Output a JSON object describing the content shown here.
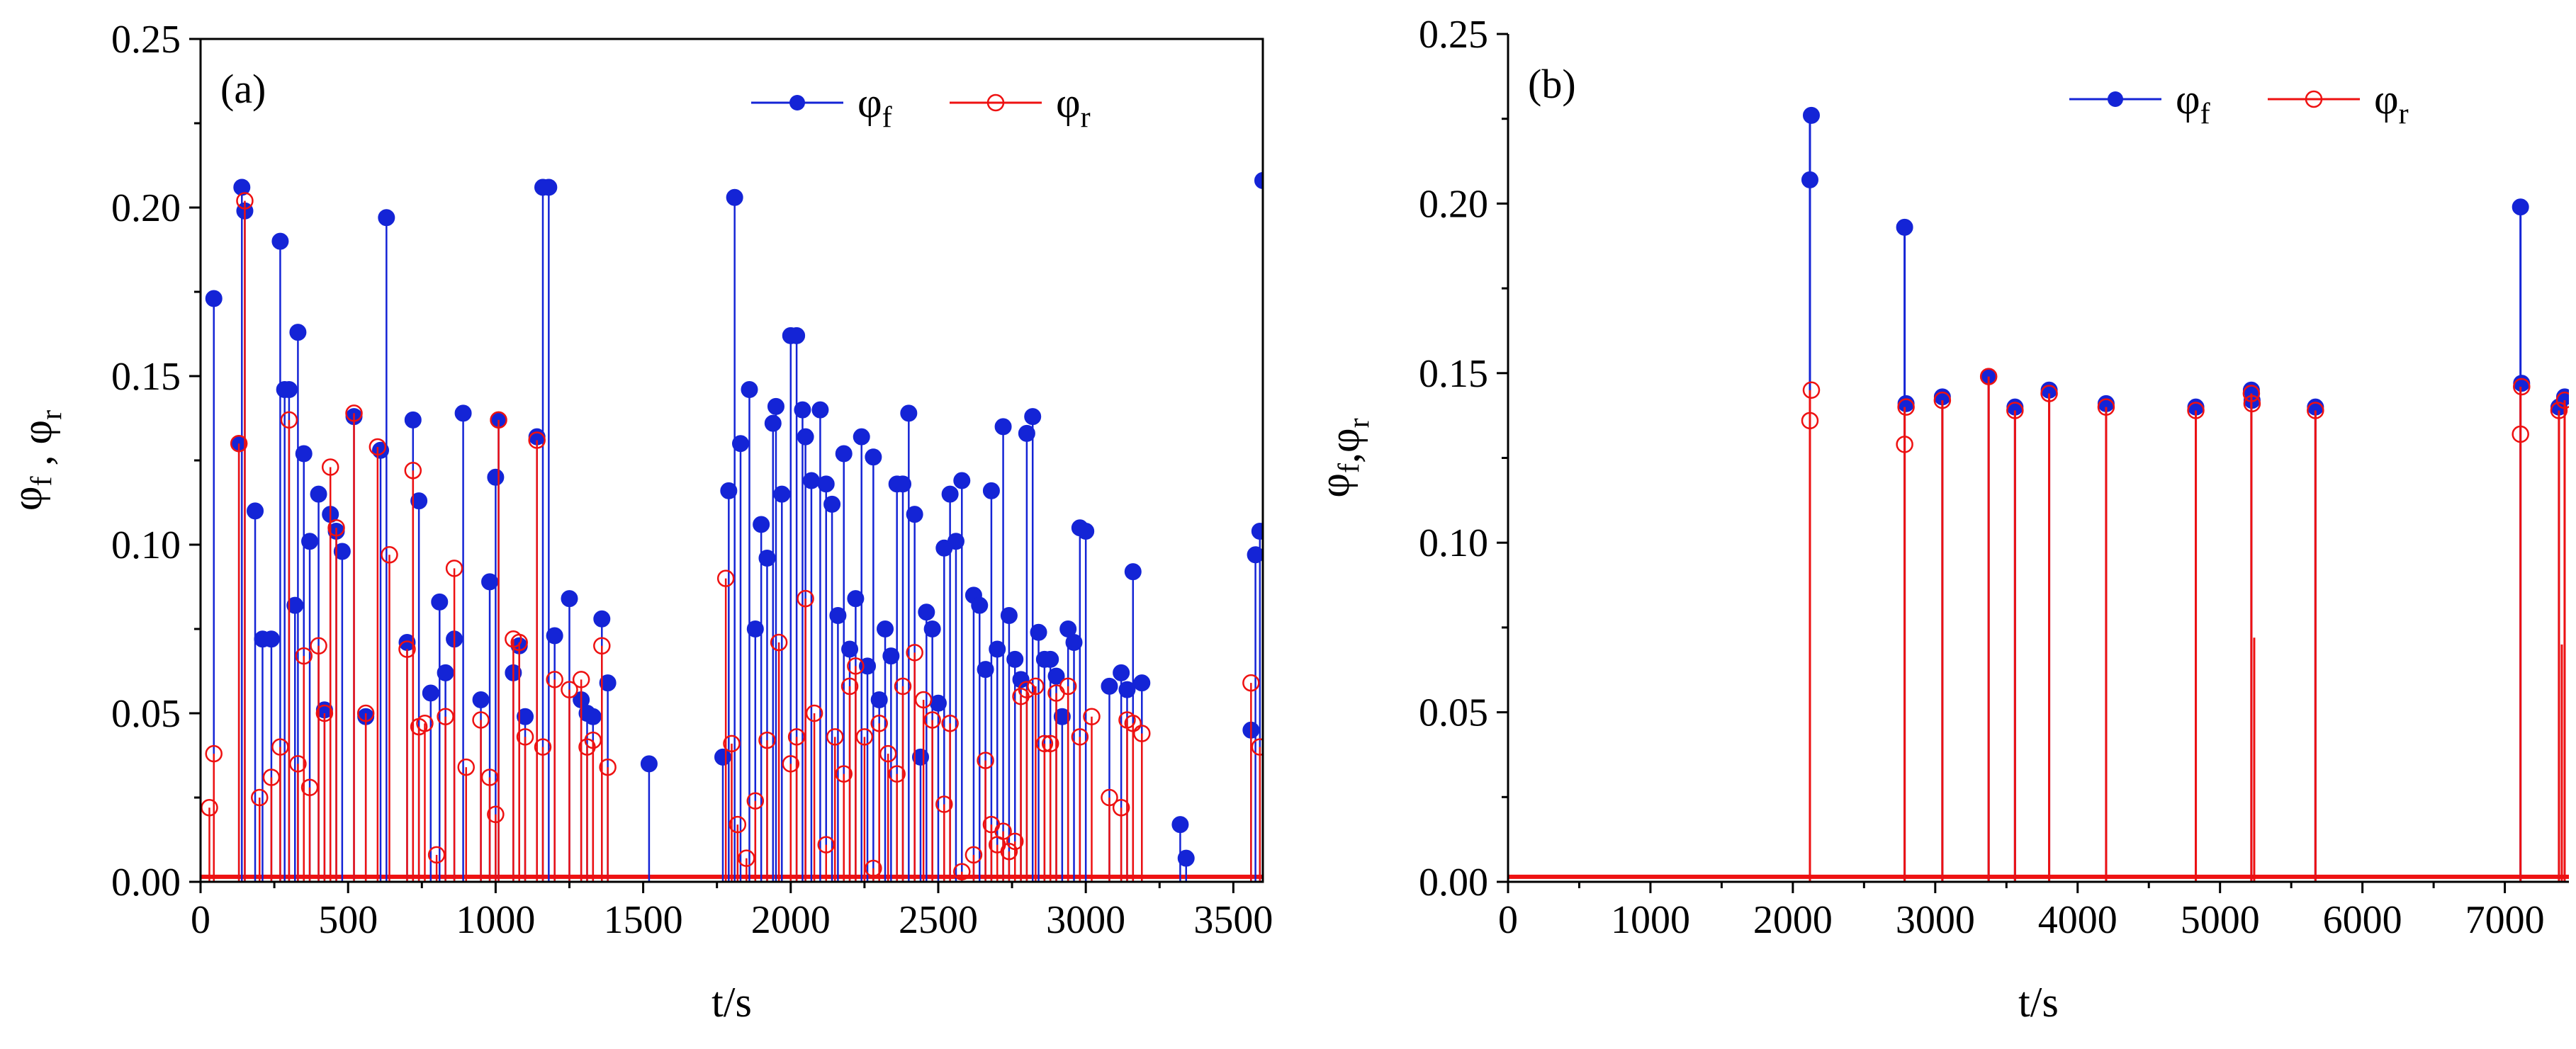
{
  "figure": {
    "colors": {
      "phi_f": "#1424d6",
      "phi_r": "#ee1111",
      "axis": "#000000"
    }
  },
  "chart_data": [
    {
      "type": "line",
      "panel_label": "(a)",
      "xlabel": "t/s",
      "ylabel": {
        "main": "φ",
        "sub_f": "f",
        "sep": " , ",
        "main2": "φ",
        "sub_r": "r"
      },
      "xlim": [
        0,
        3600
      ],
      "ylim": [
        0,
        0.25
      ],
      "x_ticks": [
        0,
        500,
        1000,
        1500,
        2000,
        2500,
        3000,
        3500
      ],
      "x_tick_labels": [
        "0",
        "500",
        "1000",
        "1500",
        "2000",
        "2500",
        "3000",
        "3500"
      ],
      "y_ticks": [
        0.0,
        0.05,
        0.1,
        0.15,
        0.2,
        0.25
      ],
      "y_tick_labels": [
        "0.00",
        "0.05",
        "0.10",
        "0.15",
        "0.20",
        "0.25"
      ],
      "legend": [
        {
          "symbol": "φ",
          "sub": "f",
          "key": "phi_f"
        },
        {
          "symbol": "φ",
          "sub": "r",
          "key": "phi_r"
        }
      ],
      "series": [
        {
          "name": "φf",
          "key": "phi_f",
          "x": [
            45,
            130,
            140,
            150,
            185,
            210,
            240,
            270,
            285,
            300,
            320,
            330,
            350,
            370,
            400,
            420,
            440,
            460,
            480,
            520,
            560,
            610,
            630,
            700,
            720,
            740,
            780,
            810,
            830,
            860,
            890,
            950,
            980,
            1000,
            1010,
            1060,
            1080,
            1100,
            1140,
            1160,
            1180,
            1200,
            1250,
            1290,
            1310,
            1330,
            1360,
            1380,
            1520,
            1770,
            1790,
            1810,
            1830,
            1860,
            1880,
            1900,
            1920,
            1940,
            1950,
            1970,
            2000,
            2020,
            2040,
            2050,
            2070,
            2100,
            2120,
            2140,
            2160,
            2180,
            2200,
            2220,
            2240,
            2260,
            2280,
            2300,
            2320,
            2340,
            2360,
            2380,
            2400,
            2420,
            2440,
            2460,
            2480,
            2500,
            2520,
            2540,
            2560,
            2580,
            2620,
            2640,
            2660,
            2680,
            2700,
            2720,
            2740,
            2760,
            2780,
            2800,
            2820,
            2840,
            2860,
            2880,
            2900,
            2920,
            2940,
            2960,
            2980,
            3000,
            3080,
            3120,
            3140,
            3160,
            3190,
            3320,
            3340,
            3560,
            3575,
            3590,
            3600
          ],
          "values": [
            0.173,
            0.13,
            0.206,
            0.199,
            0.11,
            0.072,
            0.072,
            0.19,
            0.146,
            0.146,
            0.082,
            0.163,
            0.127,
            0.101,
            0.115,
            0.051,
            0.109,
            0.104,
            0.098,
            0.138,
            0.049,
            0.128,
            0.197,
            0.071,
            0.137,
            0.113,
            0.056,
            0.083,
            0.062,
            0.072,
            0.139,
            0.054,
            0.089,
            0.12,
            0.137,
            0.062,
            0.07,
            0.049,
            0.132,
            0.206,
            0.206,
            0.073,
            0.084,
            0.054,
            0.05,
            0.049,
            0.078,
            0.059,
            0.035,
            0.037,
            0.116,
            0.203,
            0.13,
            0.146,
            0.075,
            0.106,
            0.096,
            0.136,
            0.141,
            0.115,
            0.162,
            0.162,
            0.14,
            0.132,
            0.119,
            0.14,
            0.118,
            0.112,
            0.079,
            0.127,
            0.069,
            0.084,
            0.132,
            0.064,
            0.126,
            0.054,
            0.075,
            0.067,
            0.118,
            0.118,
            0.139,
            0.109,
            0.037,
            0.08,
            0.075,
            0.053,
            0.099,
            0.115,
            0.101,
            0.119,
            0.085,
            0.082,
            0.063,
            0.116,
            0.069,
            0.135,
            0.079,
            0.066,
            0.06,
            0.133,
            0.138,
            0.074,
            0.066,
            0.066,
            0.061,
            0.049,
            0.075,
            0.071,
            0.105,
            0.104,
            0.058,
            0.062,
            0.057,
            0.092,
            0.059,
            0.017,
            0.007,
            0.045,
            0.097,
            0.104,
            0.208
          ]
        },
        {
          "name": "φr",
          "key": "phi_r",
          "x": [
            30,
            45,
            130,
            150,
            200,
            240,
            270,
            300,
            330,
            350,
            370,
            400,
            420,
            440,
            460,
            520,
            560,
            600,
            640,
            700,
            720,
            740,
            760,
            800,
            830,
            860,
            900,
            950,
            980,
            1000,
            1010,
            1060,
            1080,
            1100,
            1140,
            1160,
            1200,
            1250,
            1290,
            1310,
            1330,
            1360,
            1380,
            1780,
            1800,
            1820,
            1850,
            1880,
            1920,
            1960,
            2000,
            2020,
            2050,
            2080,
            2120,
            2150,
            2180,
            2200,
            2220,
            2250,
            2280,
            2300,
            2330,
            2360,
            2380,
            2420,
            2450,
            2480,
            2520,
            2540,
            2580,
            2620,
            2660,
            2680,
            2700,
            2720,
            2740,
            2760,
            2780,
            2800,
            2830,
            2860,
            2880,
            2900,
            2940,
            2980,
            3020,
            3080,
            3120,
            3140,
            3160,
            3190,
            3560,
            3590
          ],
          "values": [
            0.022,
            0.038,
            0.13,
            0.202,
            0.025,
            0.031,
            0.04,
            0.137,
            0.035,
            0.067,
            0.028,
            0.07,
            0.05,
            0.123,
            0.105,
            0.139,
            0.05,
            0.129,
            0.097,
            0.069,
            0.122,
            0.046,
            0.047,
            0.008,
            0.049,
            0.093,
            0.034,
            0.048,
            0.031,
            0.02,
            0.137,
            0.072,
            0.071,
            0.043,
            0.131,
            0.04,
            0.06,
            0.057,
            0.06,
            0.04,
            0.042,
            0.07,
            0.034,
            0.09,
            0.041,
            0.017,
            0.007,
            0.024,
            0.042,
            0.071,
            0.035,
            0.043,
            0.084,
            0.05,
            0.011,
            0.043,
            0.032,
            0.058,
            0.064,
            0.043,
            0.004,
            0.047,
            0.038,
            0.032,
            0.058,
            0.068,
            0.054,
            0.048,
            0.023,
            0.047,
            0.003,
            0.008,
            0.036,
            0.017,
            0.011,
            0.015,
            0.009,
            0.012,
            0.055,
            0.057,
            0.058,
            0.041,
            0.041,
            0.056,
            0.058,
            0.043,
            0.049,
            0.025,
            0.022,
            0.048,
            0.047,
            0.044,
            0.059,
            0.04
          ]
        }
      ]
    },
    {
      "type": "line",
      "panel_label": "(b)",
      "xlabel": "t/s",
      "ylabel": {
        "main": "φ",
        "sub_f": "f",
        "sep": ",",
        "main2": "φ",
        "sub_r": "r"
      },
      "xlim": [
        0,
        7450
      ],
      "ylim": [
        0,
        0.25
      ],
      "x_ticks": [
        0,
        1000,
        2000,
        3000,
        4000,
        5000,
        6000,
        7000
      ],
      "x_tick_labels": [
        "0",
        "1000",
        "2000",
        "3000",
        "4000",
        "5000",
        "6000",
        "7000"
      ],
      "y_ticks": [
        0.0,
        0.05,
        0.1,
        0.15,
        0.2,
        0.25
      ],
      "y_tick_labels": [
        "0.00",
        "0.05",
        "0.10",
        "0.15",
        "0.20",
        "0.25"
      ],
      "legend": [
        {
          "symbol": "φ",
          "sub": "f",
          "key": "phi_f"
        },
        {
          "symbol": "φ",
          "sub": "r",
          "key": "phi_r"
        }
      ],
      "series": [
        {
          "name": "φf",
          "key": "phi_f",
          "x": [
            2120,
            2130,
            2785,
            2795,
            3050,
            3375,
            3560,
            3800,
            4200,
            4830,
            5220,
            5225,
            5670,
            7110,
            7118,
            7380,
            7420
          ],
          "values": [
            0.207,
            0.226,
            0.193,
            0.141,
            0.143,
            0.149,
            0.14,
            0.145,
            0.141,
            0.14,
            0.145,
            0.142,
            0.14,
            0.199,
            0.147,
            0.14,
            0.143
          ],
          "stems": [
            [
              2120,
              0.226
            ],
            [
              2785,
              0.193
            ],
            [
              3050,
              0.143
            ],
            [
              3375,
              0.149
            ],
            [
              3560,
              0.14
            ],
            [
              3800,
              0.145
            ],
            [
              4200,
              0.141
            ],
            [
              4830,
              0.14
            ],
            [
              5220,
              0.145
            ],
            [
              5670,
              0.14
            ],
            [
              7110,
              0.199
            ],
            [
              7380,
              0.14
            ],
            [
              7420,
              0.143
            ]
          ]
        },
        {
          "name": "φr",
          "key": "phi_r",
          "x": [
            2120,
            2130,
            2785,
            2795,
            3050,
            3375,
            3560,
            3800,
            4200,
            4830,
            5220,
            5225,
            5670,
            7110,
            7118,
            7380,
            7420
          ],
          "values": [
            0.136,
            0.145,
            0.129,
            0.14,
            0.142,
            0.149,
            0.139,
            0.144,
            0.14,
            0.139,
            0.144,
            0.141,
            0.139,
            0.132,
            0.146,
            0.139,
            0.142
          ],
          "stems": [
            [
              2120,
              0.145
            ],
            [
              2785,
              0.14
            ],
            [
              3050,
              0.142
            ],
            [
              3375,
              0.149
            ],
            [
              3560,
              0.139
            ],
            [
              3800,
              0.144
            ],
            [
              4200,
              0.14
            ],
            [
              4830,
              0.139
            ],
            [
              5220,
              0.144
            ],
            [
              5670,
              0.139
            ],
            [
              7110,
              0.146
            ],
            [
              7380,
              0.139
            ],
            [
              7420,
              0.142
            ],
            [
              7400,
              0.07
            ],
            [
              5240,
              0.072
            ]
          ]
        }
      ]
    }
  ]
}
